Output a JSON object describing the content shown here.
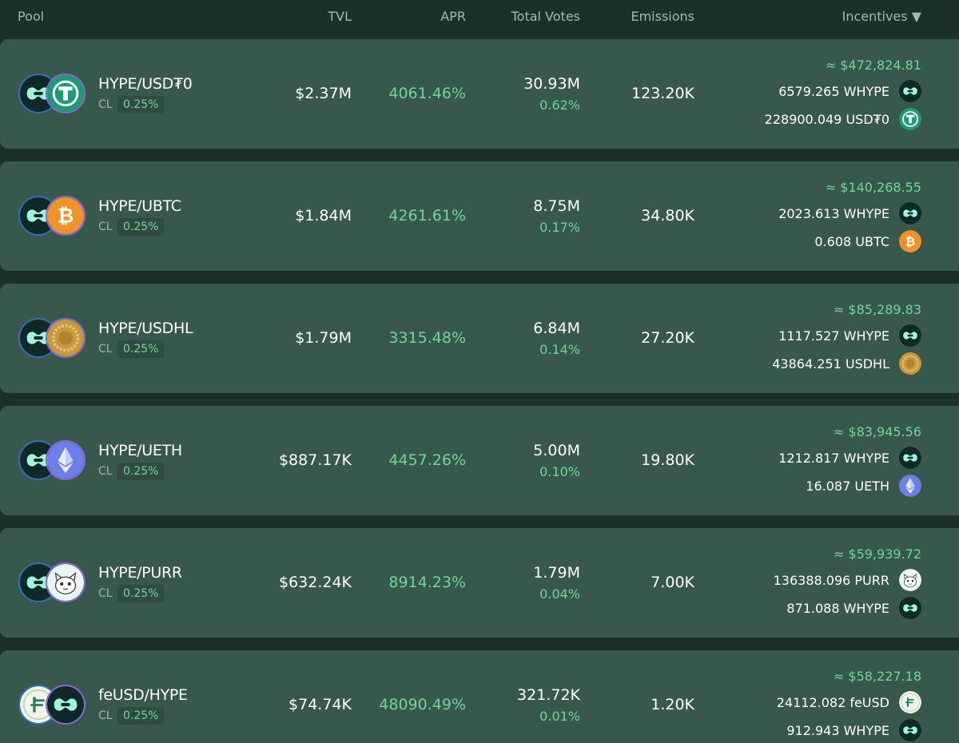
{
  "header": {
    "pool": "Pool",
    "tvl": "TVL",
    "apr": "APR",
    "votes": "Total Votes",
    "emissions": "Emissions",
    "incentives": "Incentives ▼"
  },
  "colors": {
    "accent_green": "#6fd69a",
    "row_bg": "#38584d",
    "page_bg": "#1c302a"
  },
  "pools": [
    {
      "name": "HYPE/USD₮0",
      "type": "CL",
      "fee": "0.25%",
      "tvl": "$2.37M",
      "apr": "4061.46%",
      "votes": "30.93M",
      "votes_pct": "0.62%",
      "emissions": "123.20K",
      "inc_total": "≈ $472,824.81",
      "token_a": "hype-icon",
      "token_b": "usdt0-icon",
      "incentives": [
        {
          "amount": "6579.265 WHYPE",
          "icon": "hype-icon"
        },
        {
          "amount": "228900.049 USD₮0",
          "icon": "usdt0-icon"
        }
      ]
    },
    {
      "name": "HYPE/UBTC",
      "type": "CL",
      "fee": "0.25%",
      "tvl": "$1.84M",
      "apr": "4261.61%",
      "votes": "8.75M",
      "votes_pct": "0.17%",
      "emissions": "34.80K",
      "inc_total": "≈ $140,268.55",
      "token_a": "hype-icon",
      "token_b": "bitcoin-icon",
      "incentives": [
        {
          "amount": "2023.613 WHYPE",
          "icon": "hype-icon"
        },
        {
          "amount": "0.608 UBTC",
          "icon": "bitcoin-icon"
        }
      ]
    },
    {
      "name": "HYPE/USDHL",
      "type": "CL",
      "fee": "0.25%",
      "tvl": "$1.79M",
      "apr": "3315.48%",
      "votes": "6.84M",
      "votes_pct": "0.14%",
      "emissions": "27.20K",
      "inc_total": "≈ $85,289.83",
      "token_a": "hype-icon",
      "token_b": "usdhl-icon",
      "incentives": [
        {
          "amount": "1117.527 WHYPE",
          "icon": "hype-icon"
        },
        {
          "amount": "43864.251 USDHL",
          "icon": "usdhl-icon"
        }
      ]
    },
    {
      "name": "HYPE/UETH",
      "type": "CL",
      "fee": "0.25%",
      "tvl": "$887.17K",
      "apr": "4457.26%",
      "votes": "5.00M",
      "votes_pct": "0.10%",
      "emissions": "19.80K",
      "inc_total": "≈ $83,945.56",
      "token_a": "hype-icon",
      "token_b": "ethereum-icon",
      "incentives": [
        {
          "amount": "1212.817 WHYPE",
          "icon": "hype-icon"
        },
        {
          "amount": "16.087 UETH",
          "icon": "ethereum-icon"
        }
      ]
    },
    {
      "name": "HYPE/PURR",
      "type": "CL",
      "fee": "0.25%",
      "tvl": "$632.24K",
      "apr": "8914.23%",
      "votes": "1.79M",
      "votes_pct": "0.04%",
      "emissions": "7.00K",
      "inc_total": "≈ $59,939.72",
      "token_a": "hype-icon",
      "token_b": "purr-cat-icon",
      "incentives": [
        {
          "amount": "136388.096 PURR",
          "icon": "purr-cat-icon"
        },
        {
          "amount": "871.088 WHYPE",
          "icon": "hype-icon"
        }
      ]
    },
    {
      "name": "feUSD/HYPE",
      "type": "CL",
      "fee": "0.25%",
      "tvl": "$74.74K",
      "apr": "48090.49%",
      "votes": "321.72K",
      "votes_pct": "0.01%",
      "emissions": "1.20K",
      "inc_total": "≈ $58,227.18",
      "token_a": "feusd-icon",
      "token_b": "hype-icon",
      "incentives": [
        {
          "amount": "24112.082 feUSD",
          "icon": "feusd-icon"
        },
        {
          "amount": "912.943 WHYPE",
          "icon": "hype-icon"
        }
      ]
    }
  ]
}
